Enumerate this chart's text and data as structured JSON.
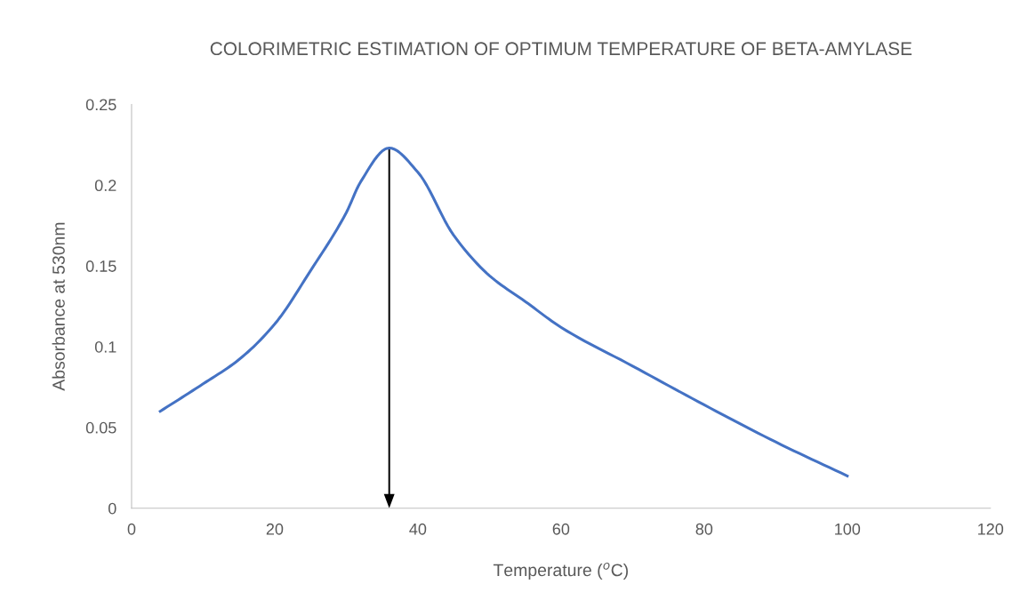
{
  "chart_data": {
    "type": "line",
    "title": "COLORIMETRIC ESTIMATION OF OPTIMUM TEMPERATURE OF BETA-AMYLASE",
    "xlabel": "Temperature ($^{o}$C)",
    "ylabel": "Absorbance at 530nm",
    "x": [
      4,
      10,
      15,
      20,
      25,
      30,
      32,
      36,
      40,
      45,
      50,
      55,
      60,
      70,
      80,
      90,
      100
    ],
    "series": [
      {
        "color": "#4472c4",
        "values": [
          0.06,
          0.077,
          0.092,
          0.114,
          0.147,
          0.183,
          0.202,
          0.223,
          0.208,
          0.169,
          0.144,
          0.128,
          0.112,
          0.088,
          0.064,
          0.041,
          0.02
        ]
      }
    ],
    "xlim": [
      0,
      120
    ],
    "xticks": [
      0,
      20,
      40,
      60,
      80,
      100,
      120
    ],
    "ylim": [
      0,
      0.25
    ],
    "yticks": [
      0,
      0.05,
      0.1,
      0.15,
      0.2,
      0.25
    ],
    "grid": false,
    "marker": "none",
    "line_style": "solid"
  }
}
